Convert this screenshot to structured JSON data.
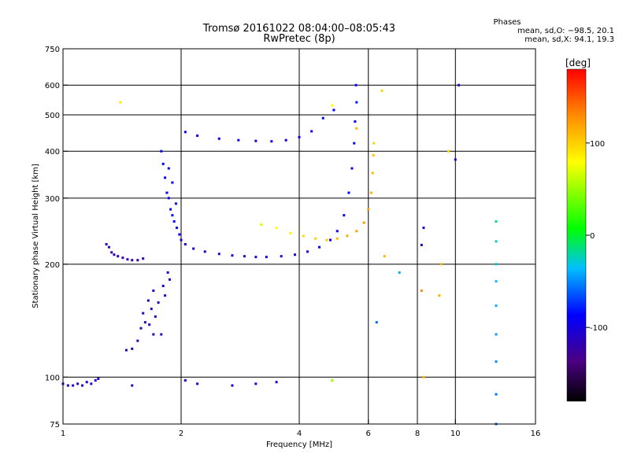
{
  "chart_data": {
    "type": "scatter",
    "title": "Tromsø 20161022 08:04:00–08:05:43",
    "subtitle": "RwPretec (8p)",
    "xlabel": "Frequency [MHz]",
    "ylabel": "Stationary phase Virtual Height [km]",
    "x_scale": "log",
    "y_scale": "log",
    "xlim": [
      1,
      16
    ],
    "ylim": [
      75,
      750
    ],
    "x_ticks": [
      1,
      2,
      4,
      6,
      8,
      10,
      16
    ],
    "y_ticks": [
      75,
      100,
      200,
      300,
      400,
      500,
      600,
      750
    ],
    "x_grid": [
      2,
      4,
      6,
      8,
      10
    ],
    "y_grid": [
      100,
      200,
      300,
      400,
      500,
      600
    ],
    "grid": true,
    "stats": {
      "heading": "Phases",
      "line_o": "mean, sd,O: −98.5, 20.1",
      "line_x": "mean, sd,X:  94.1, 19.3"
    },
    "colorbar": {
      "label": "[deg]",
      "range": [
        -180,
        180
      ],
      "ticks": [
        100,
        0,
        -100
      ]
    },
    "series": [
      {
        "points": [
          [
            1.0,
            96,
            -110
          ],
          [
            1.03,
            95,
            -108
          ],
          [
            1.06,
            95,
            -112
          ],
          [
            1.09,
            96,
            -105
          ],
          [
            1.12,
            95,
            -110
          ],
          [
            1.15,
            97,
            -100
          ],
          [
            1.18,
            96,
            -108
          ],
          [
            1.21,
            98,
            -104
          ],
          [
            1.23,
            99,
            -106
          ],
          [
            1.29,
            226,
            -118
          ],
          [
            1.31,
            222,
            -115
          ],
          [
            1.33,
            215,
            -120
          ],
          [
            1.35,
            212,
            -112
          ],
          [
            1.38,
            210,
            -118
          ],
          [
            1.42,
            208,
            -115
          ],
          [
            1.46,
            206,
            -120
          ],
          [
            1.5,
            205,
            -113
          ],
          [
            1.55,
            205,
            -118
          ],
          [
            1.6,
            207,
            -110
          ],
          [
            1.45,
            118,
            -120
          ],
          [
            1.5,
            119,
            -116
          ],
          [
            1.55,
            125,
            -118
          ],
          [
            1.58,
            135,
            -115
          ],
          [
            1.6,
            148,
            -112
          ],
          [
            1.62,
            140,
            -118
          ],
          [
            1.65,
            160,
            -110
          ],
          [
            1.68,
            152,
            -114
          ],
          [
            1.7,
            170,
            -108
          ],
          [
            1.72,
            145,
            -112
          ],
          [
            1.75,
            158,
            -108
          ],
          [
            1.78,
            130,
            -110
          ],
          [
            1.8,
            175,
            -105
          ],
          [
            1.82,
            165,
            -110
          ],
          [
            1.85,
            190,
            -108
          ],
          [
            1.87,
            182,
            -105
          ],
          [
            1.7,
            130,
            -116
          ],
          [
            1.66,
            138,
            -112
          ],
          [
            1.78,
            400,
            -85
          ],
          [
            1.8,
            370,
            -90
          ],
          [
            1.82,
            340,
            -95
          ],
          [
            1.84,
            310,
            -88
          ],
          [
            1.86,
            300,
            -92
          ],
          [
            1.88,
            280,
            -95
          ],
          [
            1.9,
            270,
            -90
          ],
          [
            1.92,
            260,
            -88
          ],
          [
            1.95,
            250,
            -92
          ],
          [
            1.98,
            240,
            -95
          ],
          [
            2.0,
            232,
            -98
          ],
          [
            1.94,
            290,
            -85
          ],
          [
            1.9,
            330,
            -90
          ],
          [
            1.86,
            360,
            -88
          ],
          [
            2.05,
            226,
            -100
          ],
          [
            2.15,
            220,
            -102
          ],
          [
            2.3,
            216,
            -104
          ],
          [
            2.5,
            213,
            -106
          ],
          [
            2.7,
            211,
            -104
          ],
          [
            2.9,
            210,
            -106
          ],
          [
            3.1,
            209,
            -104
          ],
          [
            3.3,
            209,
            -102
          ],
          [
            3.6,
            210,
            -100
          ],
          [
            3.9,
            212,
            -98
          ],
          [
            4.2,
            216,
            -96
          ],
          [
            4.5,
            222,
            -94
          ],
          [
            4.8,
            232,
            -92
          ],
          [
            5.0,
            245,
            -90
          ],
          [
            5.2,
            270,
            -88
          ],
          [
            5.35,
            310,
            -86
          ],
          [
            5.45,
            360,
            -85
          ],
          [
            5.52,
            420,
            -84
          ],
          [
            5.55,
            480,
            -86
          ],
          [
            5.6,
            540,
            -82
          ],
          [
            5.58,
            600,
            -85
          ],
          [
            2.05,
            450,
            -92
          ],
          [
            2.2,
            440,
            -94
          ],
          [
            2.5,
            432,
            -96
          ],
          [
            2.8,
            428,
            -95
          ],
          [
            3.1,
            426,
            -97
          ],
          [
            3.4,
            425,
            -96
          ],
          [
            3.7,
            428,
            -94
          ],
          [
            4.0,
            436,
            -92
          ],
          [
            4.3,
            452,
            -90
          ],
          [
            4.6,
            490,
            -88
          ],
          [
            4.9,
            515,
            -86
          ],
          [
            1.5,
            95,
            -110
          ],
          [
            2.05,
            98,
            -100
          ],
          [
            2.2,
            96,
            -102
          ],
          [
            2.7,
            95,
            -100
          ],
          [
            3.1,
            96,
            -98
          ],
          [
            3.5,
            97,
            -96
          ],
          [
            4.85,
            98,
            50
          ],
          [
            3.2,
            255,
            70
          ],
          [
            3.5,
            250,
            80
          ],
          [
            3.8,
            242,
            85
          ],
          [
            4.1,
            238,
            95
          ],
          [
            4.4,
            234,
            100
          ],
          [
            4.7,
            232,
            105
          ],
          [
            5.0,
            234,
            110
          ],
          [
            5.3,
            238,
            115
          ],
          [
            5.6,
            245,
            120
          ],
          [
            5.85,
            258,
            125
          ],
          [
            6.0,
            280,
            120
          ],
          [
            6.1,
            310,
            115
          ],
          [
            6.15,
            350,
            110
          ],
          [
            6.18,
            390,
            105
          ],
          [
            6.2,
            420,
            100
          ],
          [
            5.6,
            460,
            110
          ],
          [
            1.4,
            540,
            90
          ],
          [
            4.85,
            530,
            80
          ],
          [
            6.5,
            580,
            100
          ],
          [
            6.6,
            210,
            110
          ],
          [
            8.2,
            170,
            130
          ],
          [
            8.3,
            100,
            110
          ],
          [
            9.1,
            165,
            115
          ],
          [
            9.2,
            200,
            110
          ],
          [
            9.6,
            400,
            100
          ],
          [
            8.2,
            225,
            -115
          ],
          [
            8.3,
            250,
            -110
          ],
          [
            10.0,
            380,
            -110
          ],
          [
            10.2,
            600,
            -108
          ],
          [
            7.2,
            190,
            -40
          ],
          [
            6.3,
            140,
            -60
          ],
          [
            12.7,
            75,
            -60
          ],
          [
            12.7,
            90,
            -55
          ],
          [
            12.7,
            110,
            -50
          ],
          [
            12.7,
            130,
            -45
          ],
          [
            12.7,
            155,
            -40
          ],
          [
            12.7,
            180,
            -35
          ],
          [
            12.7,
            200,
            -30
          ],
          [
            12.7,
            230,
            -25
          ],
          [
            12.7,
            260,
            -20
          ]
        ]
      }
    ]
  }
}
